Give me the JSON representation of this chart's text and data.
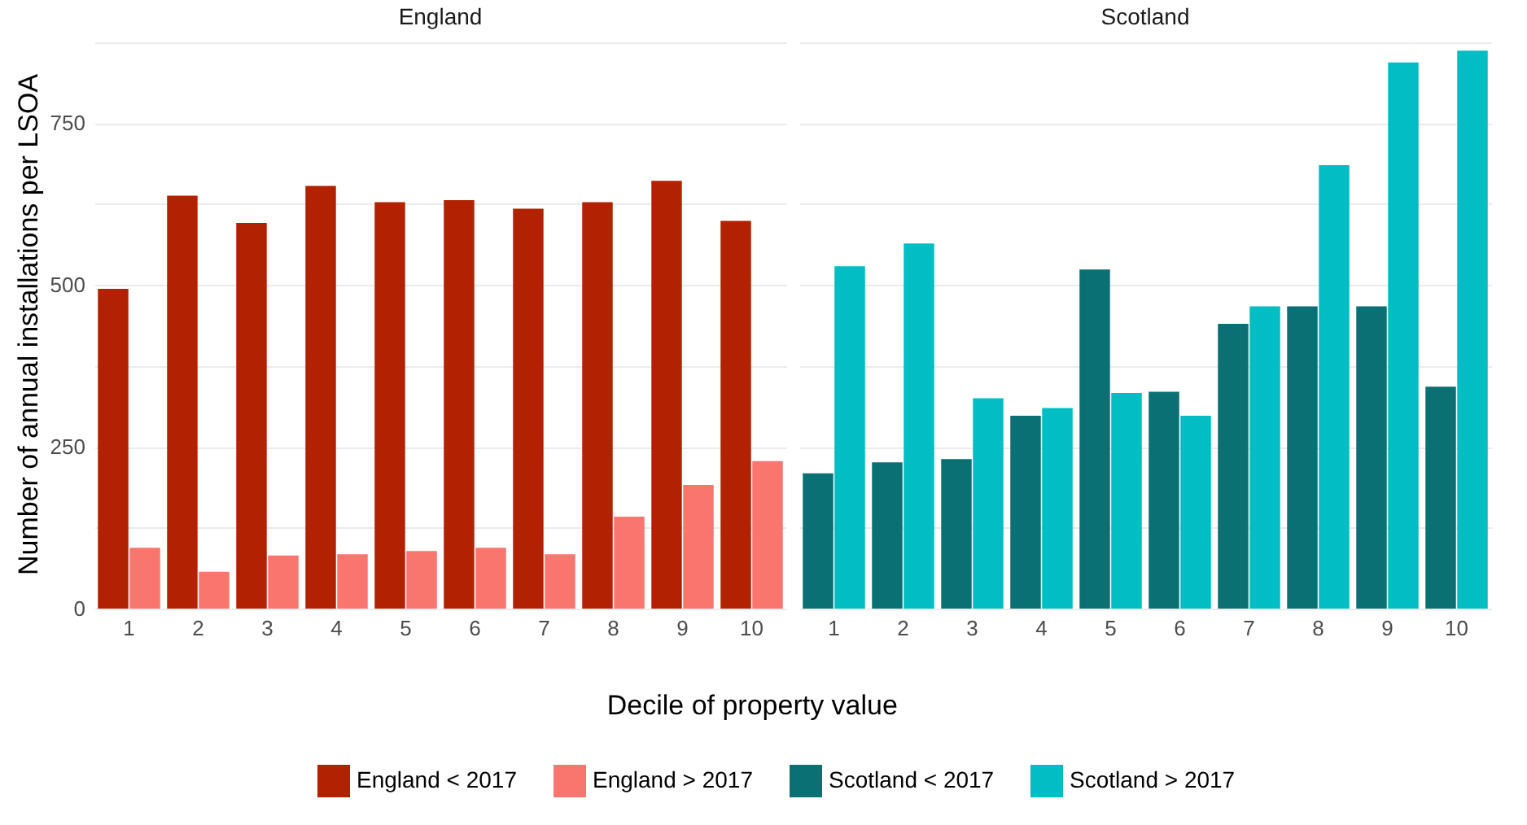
{
  "chart_data": [
    {
      "type": "bar",
      "title": "England",
      "xlabel": "Decile of property value",
      "ylabel": "Number of annual installations per LSOA",
      "categories": [
        "1",
        "2",
        "3",
        "4",
        "5",
        "6",
        "7",
        "8",
        "9",
        "10"
      ],
      "series": [
        {
          "name": "England < 2017",
          "color": "#b22200",
          "values": [
            494,
            638,
            596,
            653,
            628,
            631,
            618,
            628,
            661,
            599
          ]
        },
        {
          "name": "England > 2017",
          "color": "#f8766d",
          "values": [
            94,
            57,
            82,
            84,
            89,
            94,
            84,
            142,
            191,
            228
          ]
        }
      ],
      "ylim": [
        0,
        880
      ],
      "yticks": [
        0,
        {
          "value": 125,
          "label": null
        },
        250,
        {
          "value": 375,
          "label": null
        },
        500,
        {
          "value": 625,
          "label": null
        },
        750,
        {
          "value": 875,
          "label": null
        }
      ],
      "grid": "y",
      "legend": "bottom"
    },
    {
      "type": "bar",
      "title": "Scotland",
      "categories": [
        "1",
        "2",
        "3",
        "4",
        "5",
        "6",
        "7",
        "8",
        "9",
        "10"
      ],
      "series": [
        {
          "name": "Scotland < 2017",
          "color": "#0a7073",
          "values": [
            209,
            226,
            231,
            298,
            524,
            335,
            440,
            467,
            467,
            343
          ]
        },
        {
          "name": "Scotland > 2017",
          "color": "#00bec4",
          "values": [
            529,
            564,
            325,
            310,
            333,
            298,
            467,
            685,
            844,
            862
          ]
        }
      ],
      "ylim": [
        0,
        880
      ],
      "yticks": [
        0,
        {
          "value": 125,
          "label": null
        },
        250,
        {
          "value": 375,
          "label": null
        },
        500,
        {
          "value": 625,
          "label": null
        },
        750,
        {
          "value": 875,
          "label": null
        }
      ],
      "grid": "y",
      "legend": "bottom",
      "tick_labels": "x"
    }
  ]
}
